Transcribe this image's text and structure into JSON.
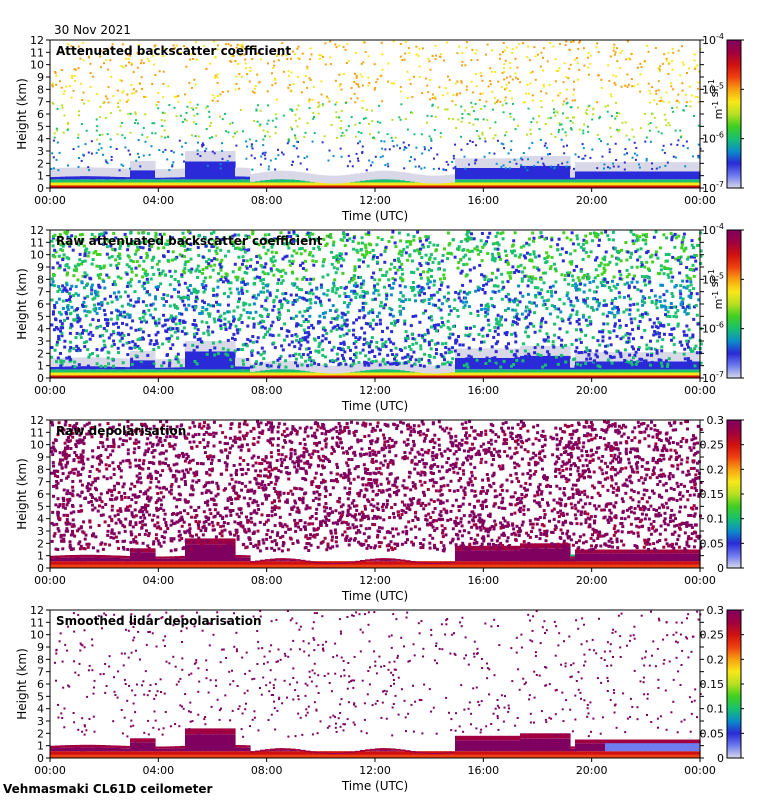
{
  "date_label": "30 Nov 2021",
  "footer_label": "Vehmasmaki CL61D ceilometer",
  "chart_data": [
    {
      "type": "heatmap",
      "title": "Attenuated backscatter coefficient",
      "xlabel": "Time (UTC)",
      "ylabel": "Height (km)",
      "x_ticks": [
        "00:00",
        "04:00",
        "08:00",
        "12:00",
        "16:00",
        "20:00",
        "00:00"
      ],
      "y_ticks": [
        "0",
        "1",
        "2",
        "3",
        "4",
        "5",
        "6",
        "7",
        "8",
        "9",
        "10",
        "11",
        "12"
      ],
      "ylim": [
        0,
        12
      ],
      "colorbar": {
        "scale": "log",
        "range": [
          1e-07,
          0.0001
        ],
        "ticks": [
          {
            "base": "10",
            "exp": "-4"
          },
          {
            "base": "10",
            "exp": "-5"
          },
          {
            "base": "10",
            "exp": "-6"
          },
          {
            "base": "10",
            "exp": "-7"
          }
        ],
        "unit_base": [
          "m",
          "sr"
        ],
        "unit_exp": [
          "-1",
          "-1"
        ]
      },
      "style": "smoothed-backscatter"
    },
    {
      "type": "heatmap",
      "title": "Raw attenuated backscatter coefficient",
      "xlabel": "Time (UTC)",
      "ylabel": "Height (km)",
      "x_ticks": [
        "00:00",
        "04:00",
        "08:00",
        "12:00",
        "16:00",
        "20:00",
        "00:00"
      ],
      "y_ticks": [
        "0",
        "1",
        "2",
        "3",
        "4",
        "5",
        "6",
        "7",
        "8",
        "9",
        "10",
        "11",
        "12"
      ],
      "ylim": [
        0,
        12
      ],
      "colorbar": {
        "scale": "log",
        "range": [
          1e-07,
          0.0001
        ],
        "ticks": [
          {
            "base": "10",
            "exp": "-4"
          },
          {
            "base": "10",
            "exp": "-5"
          },
          {
            "base": "10",
            "exp": "-6"
          },
          {
            "base": "10",
            "exp": "-7"
          }
        ],
        "unit_base": [
          "m",
          "sr"
        ],
        "unit_exp": [
          "-1",
          "-1"
        ]
      },
      "style": "raw-backscatter"
    },
    {
      "type": "heatmap",
      "title": "Raw depolarisation",
      "xlabel": "Time (UTC)",
      "ylabel": "Height (km)",
      "x_ticks": [
        "00:00",
        "04:00",
        "08:00",
        "12:00",
        "16:00",
        "20:00",
        "00:00"
      ],
      "y_ticks": [
        "0",
        "1",
        "2",
        "3",
        "4",
        "5",
        "6",
        "7",
        "8",
        "9",
        "10",
        "11",
        "12"
      ],
      "ylim": [
        0,
        12
      ],
      "colorbar": {
        "scale": "linear",
        "range": [
          0,
          0.3
        ],
        "ticks": [
          {
            "base": "0.3"
          },
          {
            "base": "0.25"
          },
          {
            "base": "0.2"
          },
          {
            "base": "0.15"
          },
          {
            "base": "0.1"
          },
          {
            "base": "0.05"
          },
          {
            "base": "0"
          }
        ]
      },
      "style": "raw-depol"
    },
    {
      "type": "heatmap",
      "title": "Smoothed lidar depolarisation",
      "xlabel": "Time (UTC)",
      "ylabel": "Height (km)",
      "x_ticks": [
        "00:00",
        "04:00",
        "08:00",
        "12:00",
        "16:00",
        "20:00",
        "00:00"
      ],
      "y_ticks": [
        "0",
        "1",
        "2",
        "3",
        "4",
        "5",
        "6",
        "7",
        "8",
        "9",
        "10",
        "11",
        "12"
      ],
      "ylim": [
        0,
        12
      ],
      "colorbar": {
        "scale": "linear",
        "range": [
          0,
          0.3
        ],
        "ticks": [
          {
            "base": "0.3"
          },
          {
            "base": "0.25"
          },
          {
            "base": "0.2"
          },
          {
            "base": "0.15"
          },
          {
            "base": "0.1"
          },
          {
            "base": "0.05"
          },
          {
            "base": "0"
          }
        ]
      },
      "style": "smooth-depol"
    }
  ]
}
